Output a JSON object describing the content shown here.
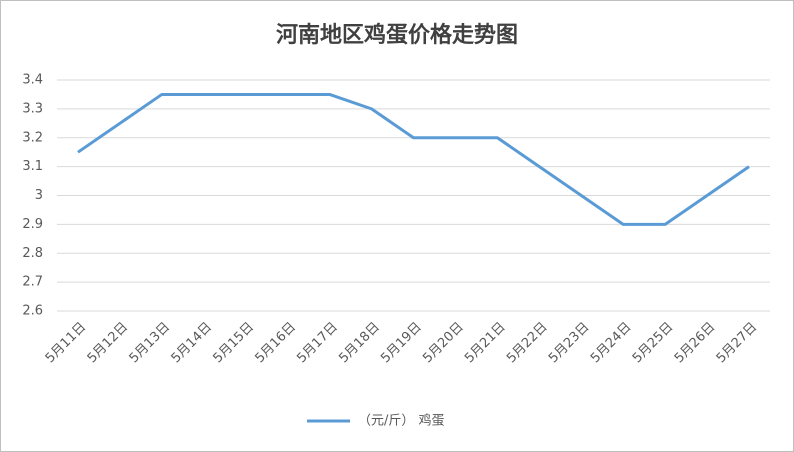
{
  "chart_data": {
    "type": "line",
    "title": "河南地区鸡蛋价格走势图",
    "categories": [
      "5月11日",
      "5月12日",
      "5月13日",
      "5月14日",
      "5月15日",
      "5月16日",
      "5月17日",
      "5月18日",
      "5月19日",
      "5月20日",
      "5月21日",
      "5月22日",
      "5月23日",
      "5月24日",
      "5月25日",
      "5月26日",
      "5月27日"
    ],
    "series": [
      {
        "name": "（元/斤） 鸡蛋",
        "color": "#5b9bd5",
        "values": [
          3.15,
          3.25,
          3.35,
          3.35,
          3.35,
          3.35,
          3.35,
          3.3,
          3.2,
          3.2,
          3.2,
          3.1,
          3.0,
          2.9,
          2.9,
          3.0,
          3.1
        ]
      }
    ],
    "ylim": [
      2.6,
      3.4
    ],
    "yticks": [
      2.6,
      2.7,
      2.8,
      2.9,
      3,
      3.1,
      3.2,
      3.3,
      3.4
    ],
    "grid": true,
    "legend": "bottom"
  }
}
